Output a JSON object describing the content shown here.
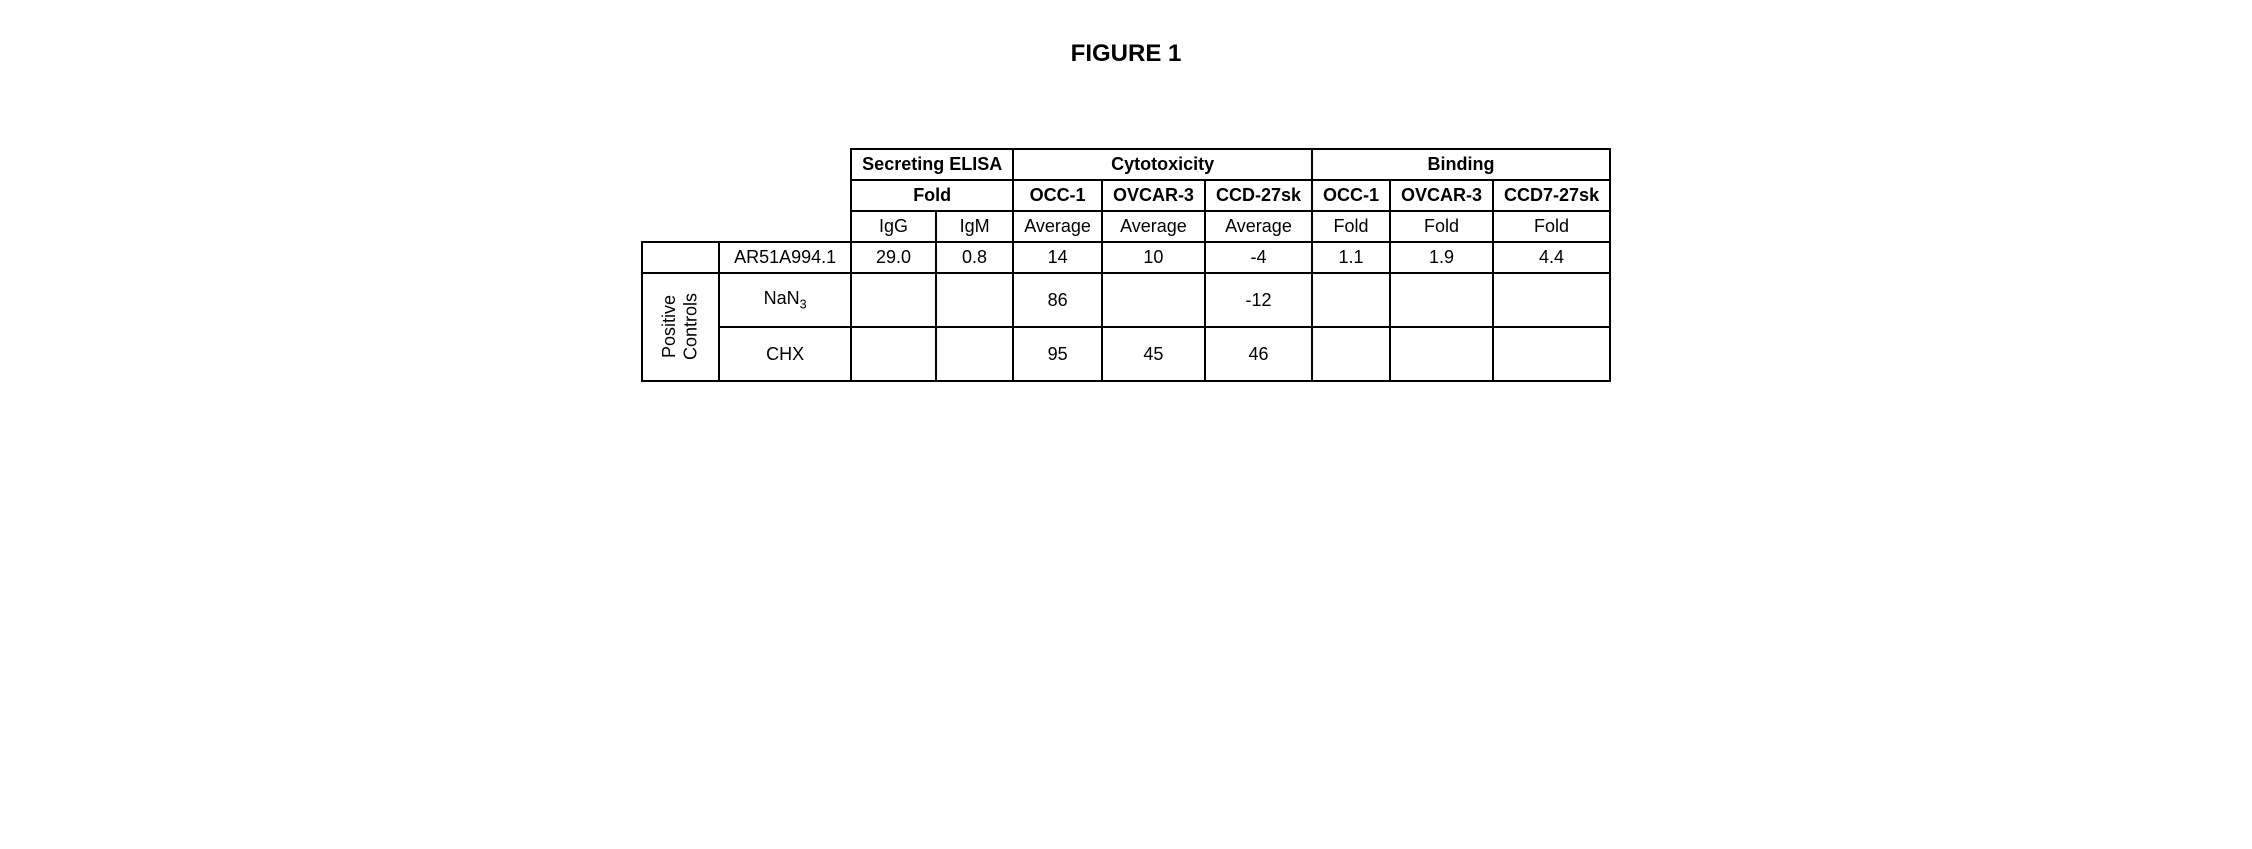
{
  "figure_title": "FIGURE 1",
  "header_groups": {
    "elisa": "Secreting ELISA",
    "cyto": "Cytotoxicity",
    "binding": "Binding"
  },
  "sub_headers": {
    "fold": "Fold",
    "occ1": "OCC-1",
    "ovcar3": "OVCAR-3",
    "ccd27sk": "CCD-27sk",
    "ccd7_27sk": "CCD7-27sk"
  },
  "col_labels": {
    "igg": "IgG",
    "igm": "IgM",
    "average": "Average",
    "fold": "Fold"
  },
  "rows": {
    "sample": {
      "label": "AR51A994.1",
      "igg": "29.0",
      "igm": "0.8",
      "cyto_occ1": "14",
      "cyto_ovcar3": "10",
      "cyto_ccd": "-4",
      "bind_occ1": "1.1",
      "bind_ovcar3": "1.9",
      "bind_ccd": "4.4"
    },
    "nan3": {
      "label_prefix": "NaN",
      "label_sub": "3",
      "cyto_occ1": "86",
      "cyto_ccd": "-12"
    },
    "chx": {
      "label": "CHX",
      "cyto_occ1": "95",
      "cyto_ovcar3": "45",
      "cyto_ccd": "46"
    }
  },
  "group_label_1": "Positive",
  "group_label_2": "Controls",
  "styles": {
    "border_color": "#000000",
    "background_color": "#ffffff",
    "title_fontsize": 24,
    "cell_fontsize": 18
  }
}
